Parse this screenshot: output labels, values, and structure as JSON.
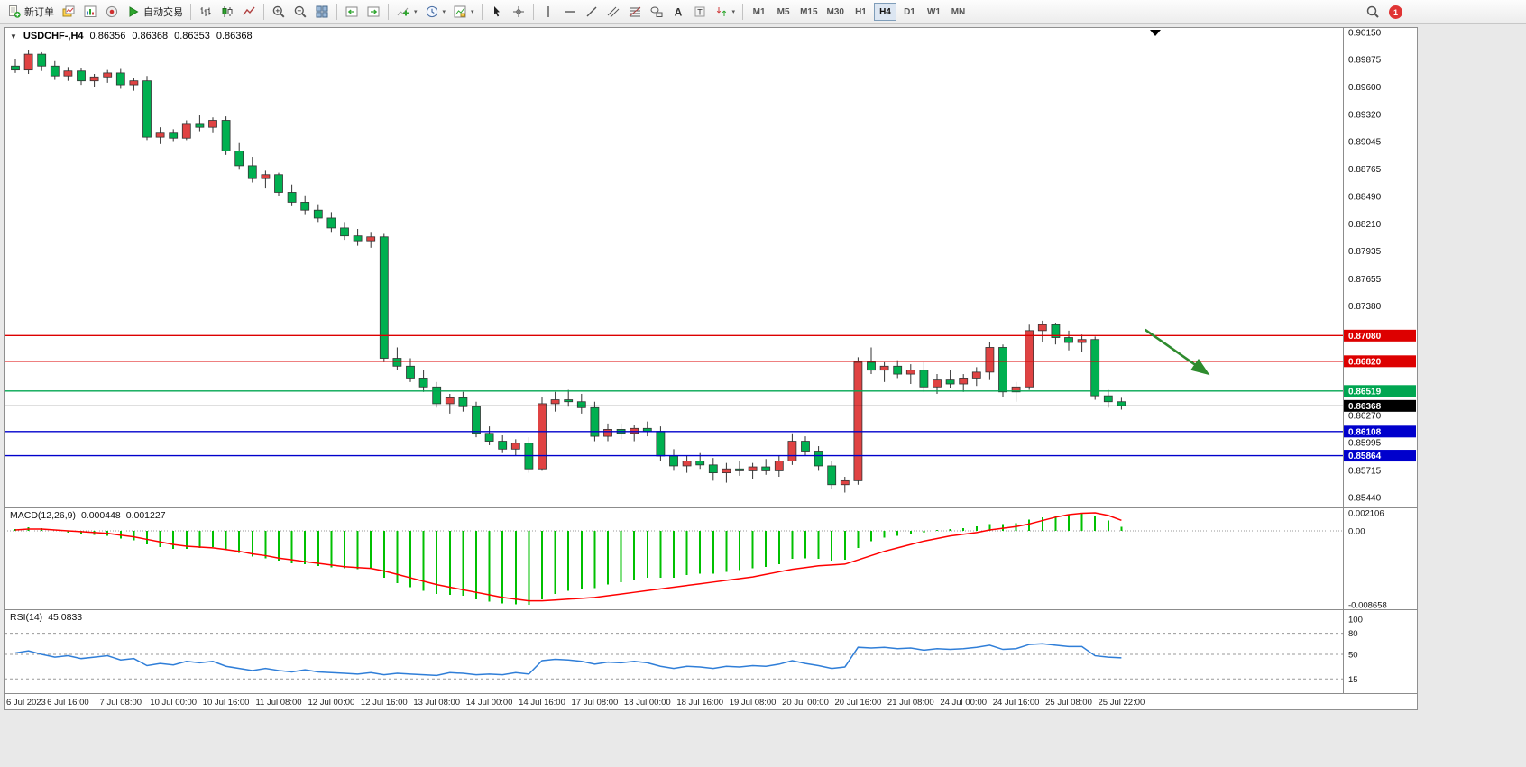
{
  "toolbar": {
    "groups": [
      {
        "items": [
          {
            "name": "new-order-button",
            "icon": "new-order",
            "label": "新订单"
          },
          {
            "name": "chart-list-button",
            "icon": "chart-list"
          },
          {
            "name": "market-watch-button",
            "icon": "market"
          },
          {
            "name": "community-button",
            "icon": "community"
          },
          {
            "name": "auto-trading-button",
            "icon": "autotrade",
            "label": "自动交易"
          }
        ]
      },
      {
        "items": [
          {
            "name": "bar-chart-button",
            "icon": "chart-bars"
          },
          {
            "name": "candlestick-chart-button",
            "icon": "chart-candles"
          },
          {
            "name": "line-chart-button",
            "icon": "chart-line"
          }
        ]
      },
      {
        "items": [
          {
            "name": "zoom-in-button",
            "icon": "zoom-in"
          },
          {
            "name": "zoom-out-button",
            "icon": "zoom-out"
          },
          {
            "name": "tile-windows-button",
            "icon": "tile"
          }
        ]
      },
      {
        "items": [
          {
            "name": "auto-scroll-button",
            "icon": "autoscroll"
          },
          {
            "name": "chart-shift-button",
            "icon": "shift"
          }
        ]
      },
      {
        "items": [
          {
            "name": "indicators-button",
            "icon": "indicators",
            "caret": true
          },
          {
            "name": "periods-button",
            "icon": "periods",
            "caret": true
          },
          {
            "name": "templates-button",
            "icon": "template",
            "caret": true
          }
        ]
      },
      {
        "items": [
          {
            "name": "cursor-button",
            "icon": "cursor"
          },
          {
            "name": "crosshair-button",
            "icon": "crosshair"
          }
        ]
      },
      {
        "items": [
          {
            "name": "vertical-line-button",
            "icon": "vline"
          },
          {
            "name": "horizontal-line-button",
            "icon": "hline"
          },
          {
            "name": "trendline-button",
            "icon": "trendline"
          },
          {
            "name": "channel-button",
            "icon": "channel"
          },
          {
            "name": "fibonacci-button",
            "icon": "fibo"
          },
          {
            "name": "shapes-button",
            "icon": "shapes"
          },
          {
            "name": "text-button",
            "icon": "text"
          },
          {
            "name": "text-label-button",
            "icon": "label"
          },
          {
            "name": "arrows-button",
            "icon": "arrows",
            "caret": true
          }
        ]
      }
    ],
    "timeframes": [
      {
        "label": "M1"
      },
      {
        "label": "M5"
      },
      {
        "label": "M15"
      },
      {
        "label": "M30"
      },
      {
        "label": "H1"
      },
      {
        "label": "H4",
        "active": true
      },
      {
        "label": "D1"
      },
      {
        "label": "W1"
      },
      {
        "label": "MN"
      }
    ],
    "notification_count": "1"
  },
  "chart": {
    "header": {
      "symbol": "USDCHF-,H4",
      "open": "0.86356",
      "high": "0.86368",
      "low": "0.86353",
      "close": "0.86368"
    },
    "indicators": {
      "macd": {
        "label": "MACD(12,26,9)",
        "value_main": "0.000448",
        "value_signal": "0.001227",
        "axis_labels": [
          "0.002106",
          "0.00",
          "-0.008658"
        ]
      },
      "rsi": {
        "label": "RSI(14)",
        "value": "45.0833",
        "axis_labels": [
          "100",
          "80",
          "50",
          "15"
        ]
      }
    }
  },
  "chart_data": {
    "type": "candlestick",
    "symbol": "USDCHF",
    "timeframe": "H4",
    "colors": {
      "up": "#e04343",
      "down": "#00b050",
      "wick": "#333333",
      "macd_histogram": "#00c000",
      "macd_signal": "#ff0000",
      "rsi_line": "#2f7ed8",
      "level_red": "#dd0000",
      "level_green": "#00a651",
      "level_blue": "#0000cc"
    },
    "price_axis": {
      "min": 0.8544,
      "max": 0.9015,
      "labels": [
        0.9015,
        0.89875,
        0.896,
        0.8932,
        0.89045,
        0.88765,
        0.8849,
        0.8821,
        0.87935,
        0.87655,
        0.8738,
        0.8627,
        0.85995,
        0.85715,
        0.8544
      ]
    },
    "label_every_n_bars": 4,
    "time_labels": [
      "6 Jul 2023",
      "6 Jul 16:00",
      "7 Jul 08:00",
      "10 Jul 00:00",
      "10 Jul 16:00",
      "11 Jul 08:00",
      "12 Jul 00:00",
      "12 Jul 16:00",
      "13 Jul 08:00",
      "14 Jul 00:00",
      "14 Jul 16:00",
      "17 Jul 08:00",
      "18 Jul 00:00",
      "18 Jul 16:00",
      "19 Jul 08:00",
      "20 Jul 00:00",
      "20 Jul 16:00",
      "21 Jul 08:00",
      "24 Jul 00:00",
      "24 Jul 16:00",
      "25 Jul 08:00",
      "25 Jul 22:00"
    ],
    "candles": [
      [
        0.8981,
        0.8988,
        0.8974,
        0.8977
      ],
      [
        0.8977,
        0.8997,
        0.8973,
        0.8993
      ],
      [
        0.8993,
        0.8995,
        0.8976,
        0.8981
      ],
      [
        0.8981,
        0.8986,
        0.8967,
        0.8971
      ],
      [
        0.8971,
        0.898,
        0.8966,
        0.8976
      ],
      [
        0.8976,
        0.8979,
        0.8962,
        0.8966
      ],
      [
        0.8966,
        0.8973,
        0.896,
        0.897
      ],
      [
        0.897,
        0.8977,
        0.8964,
        0.8974
      ],
      [
        0.8974,
        0.8978,
        0.8958,
        0.8962
      ],
      [
        0.8962,
        0.8969,
        0.8956,
        0.8966
      ],
      [
        0.8966,
        0.8971,
        0.8906,
        0.8909
      ],
      [
        0.8909,
        0.8919,
        0.8902,
        0.8913
      ],
      [
        0.8913,
        0.8917,
        0.8905,
        0.8908
      ],
      [
        0.8908,
        0.8926,
        0.8906,
        0.8922
      ],
      [
        0.8922,
        0.8931,
        0.8915,
        0.8919
      ],
      [
        0.8919,
        0.8929,
        0.8913,
        0.8926
      ],
      [
        0.8926,
        0.893,
        0.8891,
        0.8895
      ],
      [
        0.8895,
        0.8903,
        0.8876,
        0.888
      ],
      [
        0.888,
        0.8889,
        0.8863,
        0.8867
      ],
      [
        0.8867,
        0.8875,
        0.8857,
        0.8871
      ],
      [
        0.8871,
        0.8873,
        0.8849,
        0.8853
      ],
      [
        0.8853,
        0.8861,
        0.8839,
        0.8843
      ],
      [
        0.8843,
        0.885,
        0.8831,
        0.8835
      ],
      [
        0.8835,
        0.8841,
        0.8823,
        0.8827
      ],
      [
        0.8827,
        0.8833,
        0.8813,
        0.8817
      ],
      [
        0.8817,
        0.8823,
        0.8805,
        0.8809
      ],
      [
        0.8809,
        0.8816,
        0.8799,
        0.8804
      ],
      [
        0.8804,
        0.8813,
        0.8797,
        0.8808
      ],
      [
        0.8808,
        0.8811,
        0.8681,
        0.8685
      ],
      [
        0.8685,
        0.8696,
        0.8673,
        0.8677
      ],
      [
        0.8677,
        0.8685,
        0.8661,
        0.8665
      ],
      [
        0.8665,
        0.8673,
        0.8651,
        0.8656
      ],
      [
        0.8656,
        0.8661,
        0.8635,
        0.8639
      ],
      [
        0.8639,
        0.8649,
        0.8629,
        0.8645
      ],
      [
        0.8645,
        0.8651,
        0.8631,
        0.8636
      ],
      [
        0.8636,
        0.8641,
        0.8605,
        0.8609
      ],
      [
        0.8609,
        0.8616,
        0.8597,
        0.8601
      ],
      [
        0.8601,
        0.8607,
        0.8589,
        0.8593
      ],
      [
        0.8593,
        0.8603,
        0.8586,
        0.8599
      ],
      [
        0.8599,
        0.8605,
        0.8569,
        0.8573
      ],
      [
        0.8573,
        0.8646,
        0.8571,
        0.8639
      ],
      [
        0.8639,
        0.8651,
        0.8631,
        0.8643
      ],
      [
        0.8643,
        0.8653,
        0.8636,
        0.8641
      ],
      [
        0.8641,
        0.8649,
        0.8629,
        0.8635
      ],
      [
        0.8635,
        0.8641,
        0.8601,
        0.8606
      ],
      [
        0.8606,
        0.8619,
        0.8601,
        0.8613
      ],
      [
        0.8613,
        0.8619,
        0.8603,
        0.8609
      ],
      [
        0.8609,
        0.8617,
        0.8601,
        0.8614
      ],
      [
        0.8614,
        0.8621,
        0.8606,
        0.8611
      ],
      [
        0.8611,
        0.8616,
        0.8581,
        0.8586
      ],
      [
        0.8586,
        0.8593,
        0.8571,
        0.8576
      ],
      [
        0.8576,
        0.8586,
        0.8569,
        0.8581
      ],
      [
        0.8581,
        0.8589,
        0.8573,
        0.8577
      ],
      [
        0.8577,
        0.8584,
        0.8561,
        0.8569
      ],
      [
        0.8569,
        0.8579,
        0.8559,
        0.8573
      ],
      [
        0.8573,
        0.8581,
        0.8566,
        0.8571
      ],
      [
        0.8571,
        0.8579,
        0.8563,
        0.8575
      ],
      [
        0.8575,
        0.8583,
        0.8567,
        0.8571
      ],
      [
        0.8571,
        0.8586,
        0.8565,
        0.8581
      ],
      [
        0.8581,
        0.8609,
        0.8577,
        0.8601
      ],
      [
        0.8601,
        0.8606,
        0.8586,
        0.8591
      ],
      [
        0.8591,
        0.8596,
        0.8571,
        0.8576
      ],
      [
        0.8576,
        0.8581,
        0.8553,
        0.8557
      ],
      [
        0.8557,
        0.8565,
        0.8549,
        0.8561
      ],
      [
        0.8561,
        0.8686,
        0.8557,
        0.8681
      ],
      [
        0.8681,
        0.8696,
        0.8669,
        0.8673
      ],
      [
        0.8673,
        0.8681,
        0.8661,
        0.8677
      ],
      [
        0.8677,
        0.8683,
        0.8665,
        0.8669
      ],
      [
        0.8669,
        0.8679,
        0.8659,
        0.8673
      ],
      [
        0.8673,
        0.8681,
        0.8651,
        0.8656
      ],
      [
        0.8656,
        0.8669,
        0.8649,
        0.8663
      ],
      [
        0.8663,
        0.8673,
        0.8655,
        0.8659
      ],
      [
        0.8659,
        0.8669,
        0.8651,
        0.8665
      ],
      [
        0.8665,
        0.8676,
        0.8657,
        0.8671
      ],
      [
        0.8671,
        0.8701,
        0.8663,
        0.8696
      ],
      [
        0.8696,
        0.8699,
        0.8646,
        0.8651
      ],
      [
        0.8651,
        0.8661,
        0.8641,
        0.8656
      ],
      [
        0.8656,
        0.8719,
        0.8653,
        0.8713
      ],
      [
        0.8713,
        0.8723,
        0.8701,
        0.8719
      ],
      [
        0.8719,
        0.8721,
        0.8699,
        0.8706
      ],
      [
        0.8706,
        0.8713,
        0.8693,
        0.8701
      ],
      [
        0.8701,
        0.8709,
        0.8691,
        0.8704
      ],
      [
        0.8704,
        0.8707,
        0.8643,
        0.8647
      ],
      [
        0.8647,
        0.8653,
        0.8635,
        0.8641
      ],
      [
        0.8641,
        0.8645,
        0.8633,
        0.86368
      ]
    ],
    "levels": [
      {
        "price": 0.8708,
        "color": "#dd0000",
        "type": "resistance"
      },
      {
        "price": 0.8682,
        "color": "#dd0000",
        "type": "resistance"
      },
      {
        "price": 0.86519,
        "color": "#00a651",
        "type": "support"
      },
      {
        "price": 0.86368,
        "color": "#000000",
        "type": "current-price"
      },
      {
        "price": 0.86108,
        "color": "#0000cc",
        "type": "support"
      },
      {
        "price": 0.85864,
        "color": "#0000cc",
        "type": "support"
      }
    ],
    "annotations": [
      {
        "type": "arrow",
        "color": "#2e8b2e",
        "from_bar": 85.8,
        "from_price": 0.8714,
        "to_bar": 90.5,
        "to_price": 0.867
      }
    ],
    "macd": {
      "params": [
        12,
        26,
        9
      ],
      "range": [
        -0.008658,
        0.002106
      ],
      "histogram": [
        0.0002,
        0.0004,
        0.0003,
        0.0,
        -0.0002,
        -0.0004,
        -0.0005,
        -0.0006,
        -0.0009,
        -0.0011,
        -0.0016,
        -0.0019,
        -0.0021,
        -0.0021,
        -0.002,
        -0.0019,
        -0.0022,
        -0.0026,
        -0.003,
        -0.0032,
        -0.0035,
        -0.0038,
        -0.0039,
        -0.0041,
        -0.0043,
        -0.0044,
        -0.0045,
        -0.0044,
        -0.0055,
        -0.0061,
        -0.0066,
        -0.007,
        -0.0074,
        -0.0075,
        -0.0076,
        -0.008,
        -0.0083,
        -0.0085,
        -0.0086,
        -0.008658,
        -0.008,
        -0.0074,
        -0.007,
        -0.0068,
        -0.0067,
        -0.0063,
        -0.006,
        -0.0057,
        -0.0055,
        -0.0055,
        -0.0055,
        -0.0052,
        -0.005,
        -0.005,
        -0.0048,
        -0.0046,
        -0.0044,
        -0.0042,
        -0.0039,
        -0.0033,
        -0.0032,
        -0.0033,
        -0.0035,
        -0.0034,
        -0.002,
        -0.0012,
        -0.0008,
        -0.0006,
        -0.0004,
        -0.0002,
        0.0001,
        0.0002,
        0.0003,
        0.0005,
        0.0008,
        0.0008,
        0.0009,
        0.0013,
        0.0016,
        0.0018,
        0.0019,
        0.002,
        0.0017,
        0.0012,
        0.000448
      ],
      "signal": [
        0.0001,
        0.0002,
        0.0002,
        0.0001,
        0.0,
        -0.0001,
        -0.0002,
        -0.0003,
        -0.0005,
        -0.0007,
        -0.001,
        -0.0013,
        -0.0016,
        -0.0018,
        -0.0019,
        -0.002,
        -0.0022,
        -0.0024,
        -0.0027,
        -0.0029,
        -0.0032,
        -0.0034,
        -0.0036,
        -0.0038,
        -0.004,
        -0.0042,
        -0.0043,
        -0.0044,
        -0.0047,
        -0.0051,
        -0.0055,
        -0.0059,
        -0.0063,
        -0.0066,
        -0.0069,
        -0.0072,
        -0.0075,
        -0.0078,
        -0.008,
        -0.0082,
        -0.0082,
        -0.0081,
        -0.008,
        -0.0079,
        -0.0078,
        -0.0076,
        -0.0074,
        -0.0072,
        -0.007,
        -0.0068,
        -0.0066,
        -0.0064,
        -0.0062,
        -0.006,
        -0.0058,
        -0.0056,
        -0.0054,
        -0.0051,
        -0.0048,
        -0.0045,
        -0.0043,
        -0.0041,
        -0.004,
        -0.0039,
        -0.0034,
        -0.0029,
        -0.0024,
        -0.002,
        -0.0016,
        -0.0012,
        -0.0009,
        -0.0006,
        -0.0004,
        -0.0002,
        0.0001,
        0.0003,
        0.0005,
        0.0008,
        0.0012,
        0.0016,
        0.0019,
        0.00205,
        0.0021,
        0.0018,
        0.001227
      ]
    },
    "rsi": {
      "period": 14,
      "range": [
        0,
        100
      ],
      "levels": [
        80,
        50,
        15
      ],
      "values": [
        52,
        55,
        50,
        46,
        48,
        44,
        46,
        48,
        42,
        44,
        34,
        37,
        35,
        40,
        38,
        40,
        33,
        30,
        27,
        30,
        27,
        25,
        28,
        25,
        24,
        23,
        22,
        24,
        21,
        23,
        22,
        21,
        20,
        24,
        23,
        21,
        22,
        21,
        24,
        22,
        41,
        43,
        42,
        40,
        36,
        39,
        38,
        40,
        38,
        33,
        30,
        33,
        32,
        30,
        33,
        32,
        34,
        33,
        36,
        41,
        37,
        34,
        30,
        32,
        60,
        59,
        60,
        58,
        59,
        56,
        58,
        57,
        58,
        60,
        63,
        57,
        58,
        64,
        65,
        63,
        61,
        61,
        48,
        46,
        45.08
      ]
    }
  }
}
